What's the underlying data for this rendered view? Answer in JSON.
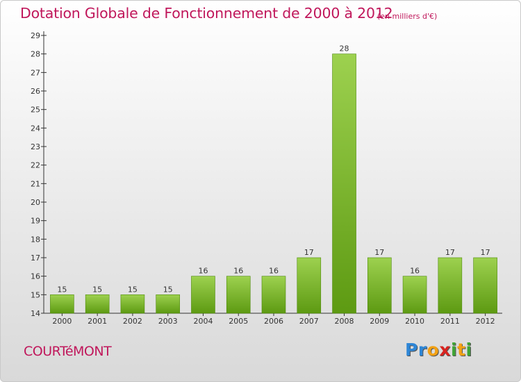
{
  "header": {
    "title": "Dotation Globale de Fonctionnement de 2000 à 2012",
    "unit_label": "(en milliers d'€)"
  },
  "footer": {
    "commune": "COURTéMONT",
    "logo": {
      "letters": [
        {
          "char": "P",
          "color": "#2e86d6"
        },
        {
          "char": "r",
          "color": "#2e86d6"
        },
        {
          "char": "o",
          "color": "#f2a114"
        },
        {
          "char": "x",
          "color": "#d8231f"
        },
        {
          "char": "i",
          "color": "#3fa535"
        },
        {
          "char": "t",
          "color": "#f2a114"
        },
        {
          "char": "i",
          "color": "#3fa535"
        }
      ]
    }
  },
  "colors": {
    "title": "#c0175b",
    "bar_top": "#9dd14f",
    "bar_bottom": "#5d9a12",
    "bar_border": "#4f8a0c"
  },
  "chart_data": {
    "type": "bar",
    "title": "Dotation Globale de Fonctionnement de 2000 à 2012",
    "subtitle": "(en milliers d'€)",
    "xlabel": "",
    "ylabel": "",
    "categories": [
      "2000",
      "2001",
      "2002",
      "2003",
      "2004",
      "2005",
      "2006",
      "2007",
      "2008",
      "2009",
      "2010",
      "2011",
      "2012"
    ],
    "values": [
      15,
      15,
      15,
      15,
      16,
      16,
      16,
      17,
      28,
      17,
      16,
      17,
      17
    ],
    "ylim": [
      14,
      29
    ],
    "yticks": [
      14,
      15,
      16,
      17,
      18,
      19,
      20,
      21,
      22,
      23,
      24,
      25,
      26,
      27,
      28,
      29
    ],
    "grid": false,
    "legend": "none"
  }
}
